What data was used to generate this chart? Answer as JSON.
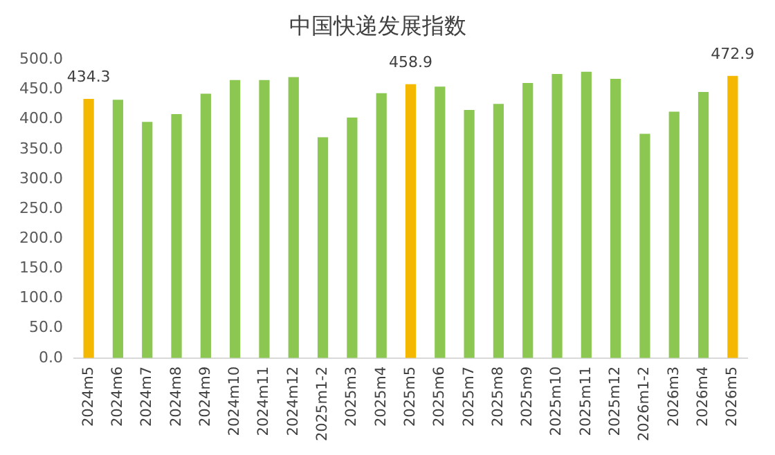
{
  "chart_data": {
    "type": "bar",
    "title": "中国快递发展指数",
    "categories": [
      "2024m5",
      "2024m6",
      "2024m7",
      "2024m8",
      "2024m9",
      "2024m10",
      "2024m11",
      "2024m12",
      "2025m1-2",
      "2025m3",
      "2025m4",
      "2025m5",
      "2025m6",
      "2025m7",
      "2025m8",
      "2025m9",
      "2025m10",
      "2025m11",
      "2025m12",
      "2026m1-2",
      "2026m3",
      "2026m4",
      "2026m5"
    ],
    "values": [
      434.3,
      433,
      396,
      409,
      443,
      466,
      466,
      471,
      370,
      403,
      444,
      458.9,
      455,
      416,
      426,
      461,
      476,
      480,
      468,
      376,
      413,
      446,
      472.9
    ],
    "colors": [
      "#f5b800",
      "#8cc751",
      "#8cc751",
      "#8cc751",
      "#8cc751",
      "#8cc751",
      "#8cc751",
      "#8cc751",
      "#8cc751",
      "#8cc751",
      "#8cc751",
      "#f5b800",
      "#8cc751",
      "#8cc751",
      "#8cc751",
      "#8cc751",
      "#8cc751",
      "#8cc751",
      "#8cc751",
      "#8cc751",
      "#8cc751",
      "#8cc751",
      "#f5b800"
    ],
    "value_labels": [
      "434.3",
      null,
      null,
      null,
      null,
      null,
      null,
      null,
      null,
      null,
      null,
      "458.9",
      null,
      null,
      null,
      null,
      null,
      null,
      null,
      null,
      null,
      null,
      "472.9"
    ],
    "ylim": [
      0,
      500
    ],
    "yticks": [
      {
        "value": 0,
        "label": "0.0"
      },
      {
        "value": 50,
        "label": "50.0"
      },
      {
        "value": 100,
        "label": "100.0"
      },
      {
        "value": 150,
        "label": "150.0"
      },
      {
        "value": 200,
        "label": "200.0"
      },
      {
        "value": 250,
        "label": "250.0"
      },
      {
        "value": 300,
        "label": "300.0"
      },
      {
        "value": 350,
        "label": "350.0"
      },
      {
        "value": 400,
        "label": "400.0"
      },
      {
        "value": 450,
        "label": "450.0"
      },
      {
        "value": 500,
        "label": "500.0"
      }
    ],
    "grid": false,
    "legend": false
  }
}
